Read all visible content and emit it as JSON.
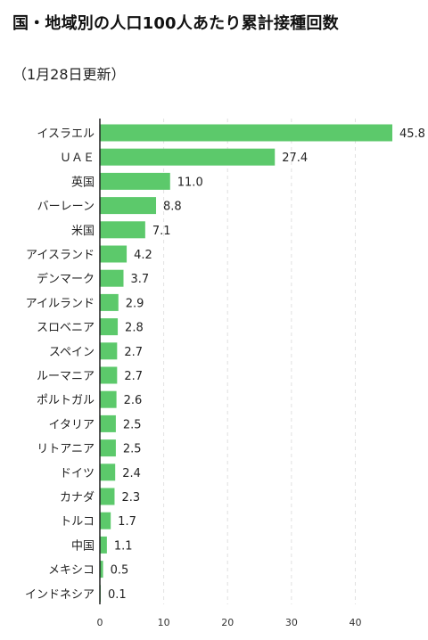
{
  "header": {
    "title": "国・地域別の人口100人あたり累計接種回数",
    "subtitle": "（1月28日更新）"
  },
  "chart_data": {
    "type": "bar",
    "orientation": "horizontal",
    "title": "国・地域別の人口100人あたり累計接種回数",
    "subtitle": "（1月28日更新）",
    "categories": [
      "イスラエル",
      "ＵＡＥ",
      "英国",
      "バーレーン",
      "米国",
      "アイスランド",
      "デンマーク",
      "アイルランド",
      "スロベニア",
      "スペイン",
      "ルーマニア",
      "ポルトガル",
      "イタリア",
      "リトアニア",
      "ドイツ",
      "カナダ",
      "トルコ",
      "中国",
      "メキシコ",
      "インドネシア"
    ],
    "values": [
      45.8,
      27.4,
      11.0,
      8.8,
      7.1,
      4.2,
      3.7,
      2.9,
      2.8,
      2.7,
      2.7,
      2.6,
      2.5,
      2.5,
      2.4,
      2.3,
      1.7,
      1.1,
      0.5,
      0.1
    ],
    "value_labels": [
      "45.8",
      "27.4",
      "11.0",
      "8.8",
      "7.1",
      "4.2",
      "3.7",
      "2.9",
      "2.8",
      "2.7",
      "2.7",
      "2.6",
      "2.5",
      "2.5",
      "2.4",
      "2.3",
      "1.7",
      "1.1",
      "0.5",
      "0.1"
    ],
    "xticks": [
      "0",
      "10",
      "20",
      "30",
      "40"
    ],
    "xlim": [
      0,
      45.8
    ],
    "grid": "vertical-dashed",
    "bar_color": "#5cc96b",
    "grid_color": "#e0e0e0",
    "axis_color": "#222222"
  }
}
